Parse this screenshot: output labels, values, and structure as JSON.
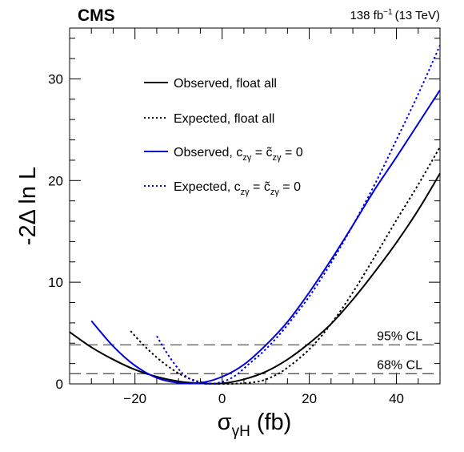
{
  "header": {
    "experiment": "CMS",
    "lumi_value": "138 fb",
    "lumi_exp": "−1",
    "lumi_energy": "(13 TeV)"
  },
  "chart_data": {
    "type": "line",
    "xlabel_main": "σ",
    "xlabel_sub": "γH",
    "xlabel_unit": "(fb)",
    "ylabel": "-2Δ ln L",
    "xlim": [
      -35,
      50
    ],
    "ylim": [
      0,
      35
    ],
    "xticks": [
      -20,
      0,
      20,
      40
    ],
    "yticks": [
      0,
      10,
      20,
      30
    ],
    "xtick_labels": [
      "−20",
      "0",
      "20",
      "40"
    ],
    "ytick_labels": [
      "0",
      "10",
      "20",
      "30"
    ],
    "legend_placement": "top-center",
    "legend": [
      {
        "text": "Observed, float all",
        "color": "#000000",
        "style": "solid"
      },
      {
        "text": "Expected, float all",
        "color": "#000000",
        "style": "dotted"
      },
      {
        "pre": "Observed, c",
        "sub1": "zγ",
        "mid": " = c̃",
        "sub2": "zγ",
        "post": " = 0",
        "color": "#0000dd",
        "style": "solid"
      },
      {
        "pre": "Expected, c",
        "sub1": "zγ",
        "mid": " = c̃",
        "sub2": "zγ",
        "post": " = 0",
        "color": "#0000dd",
        "style": "dotted"
      }
    ],
    "reference_lines": [
      {
        "label": "95% CL",
        "y": 3.84
      },
      {
        "label": "68% CL",
        "y": 1.0
      }
    ],
    "series": [
      {
        "name": "Observed, float all",
        "color": "#000000",
        "style": "solid",
        "x": [
          -35,
          -30,
          -25,
          -20,
          -15,
          -10,
          -5,
          0,
          5,
          10,
          15,
          20,
          25,
          30,
          35,
          40,
          45,
          50
        ],
        "y": [
          5.1,
          3.6,
          2.4,
          1.4,
          0.7,
          0.25,
          0.05,
          0.05,
          0.45,
          1.2,
          2.4,
          4.0,
          5.9,
          8.3,
          11.0,
          13.9,
          17.1,
          20.7
        ]
      },
      {
        "name": "Expected, float all",
        "color": "#000000",
        "style": "dotted",
        "x": [
          -21,
          -18,
          -15,
          -12,
          -9,
          -6,
          -3,
          0,
          3,
          6,
          9,
          12,
          15,
          20,
          25,
          30,
          35,
          40,
          45,
          50
        ],
        "y": [
          5.2,
          3.8,
          2.6,
          1.6,
          0.8,
          0.3,
          0.05,
          0.0,
          0.02,
          0.1,
          0.3,
          0.8,
          1.6,
          3.4,
          5.9,
          9.0,
          12.5,
          16.1,
          19.6,
          23.3
        ]
      },
      {
        "name": "Observed, czγ = c̃zγ = 0",
        "color": "#0000dd",
        "style": "solid",
        "x": [
          -30,
          -25,
          -20,
          -15,
          -10,
          -5,
          0,
          5,
          10,
          15,
          20,
          25,
          30,
          35,
          40,
          45,
          50
        ],
        "y": [
          6.2,
          3.7,
          1.8,
          0.6,
          0.1,
          0.1,
          0.7,
          1.9,
          3.8,
          6.1,
          9.0,
          12.2,
          15.6,
          19.1,
          22.3,
          25.6,
          28.9
        ]
      },
      {
        "name": "Expected, czγ = c̃zγ = 0",
        "color": "#0000dd",
        "style": "dotted",
        "x": [
          -15,
          -12,
          -9,
          -6,
          -3,
          0,
          3,
          6,
          9,
          12,
          15,
          20,
          25,
          30,
          35,
          40,
          45,
          50
        ],
        "y": [
          4.7,
          2.6,
          1.0,
          0.2,
          0.0,
          0.2,
          0.8,
          1.9,
          3.0,
          4.3,
          5.8,
          8.6,
          11.9,
          15.6,
          19.6,
          24.0,
          28.5,
          33.3
        ]
      }
    ]
  }
}
